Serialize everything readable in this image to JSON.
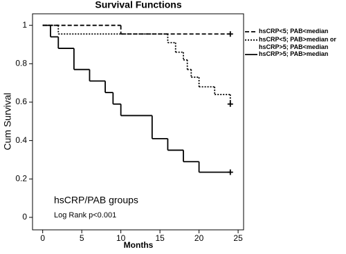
{
  "chart_data": {
    "type": "step",
    "title": "Survival Functions",
    "x_label": "Months",
    "y_label": "Cum Survival",
    "annotations": [
      "hsCRP/PAB groups",
      "Log Rank p<0.001"
    ],
    "xlim": [
      -1.3,
      25.7
    ],
    "xticks": [
      0,
      5,
      10,
      15,
      20,
      25
    ],
    "ylim": [
      -0.065,
      1.06
    ],
    "yticks": [
      0,
      0.2,
      0.4,
      0.6,
      0.8,
      1
    ],
    "series": [
      {
        "name": "hsCRP<5; PAB<median",
        "color": "#000000",
        "line_style": "dashed",
        "x": [
          0,
          10,
          24
        ],
        "values": [
          1,
          0.955,
          0.955
        ]
      },
      {
        "name": "hsCRP<5; PAB>median or hsCRP>5; PAB<median",
        "color": "#000000",
        "line_style": "dotted",
        "x": [
          0,
          2,
          16,
          17,
          18,
          18.5,
          19,
          20,
          22,
          24
        ],
        "values": [
          1,
          0.955,
          0.91,
          0.86,
          0.82,
          0.77,
          0.73,
          0.68,
          0.64,
          0.59
        ]
      },
      {
        "name": "hsCRP>5; PAB>median",
        "color": "#000000",
        "line_style": "solid",
        "x": [
          0,
          1,
          2,
          4,
          6,
          8,
          9,
          10,
          14,
          16,
          18,
          20,
          24
        ],
        "values": [
          1,
          0.94,
          0.88,
          0.77,
          0.71,
          0.65,
          0.59,
          0.53,
          0.41,
          0.35,
          0.29,
          0.235,
          0.235
        ]
      }
    ]
  }
}
